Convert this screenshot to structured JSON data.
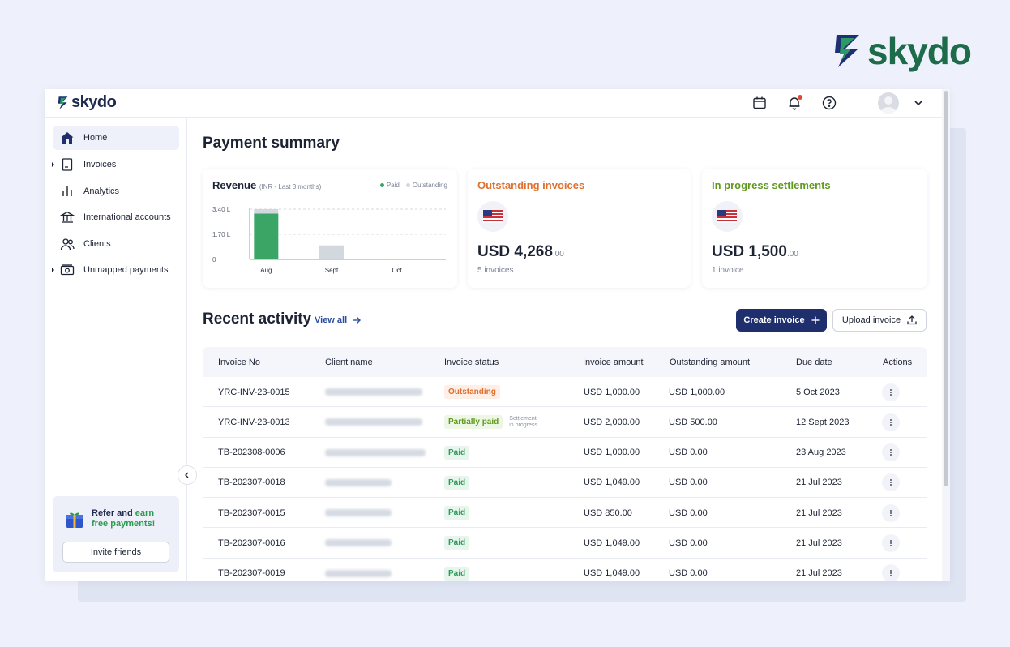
{
  "brand": {
    "name": "skydo",
    "colors": {
      "green": "#1d6b4a",
      "navy": "#1f2f6e"
    }
  },
  "topbar": {
    "logo": "skydo"
  },
  "sidebar": {
    "items": [
      {
        "label": "Home",
        "icon": "home-icon"
      },
      {
        "label": "Invoices",
        "icon": "invoice-icon"
      },
      {
        "label": "Analytics",
        "icon": "analytics-icon"
      },
      {
        "label": "International accounts",
        "icon": "bank-icon"
      },
      {
        "label": "Clients",
        "icon": "clients-icon"
      },
      {
        "label": "Unmapped payments",
        "icon": "payments-icon"
      }
    ],
    "refer": {
      "text_a": "Refer and ",
      "text_b": "earn free",
      "text_c": "payments!",
      "button": "Invite friends"
    }
  },
  "main": {
    "title": "Payment summary",
    "revenue": {
      "title": "Revenue",
      "subtitle": "(INR - Last 3 months)",
      "legend_paid": "Paid",
      "legend_outstanding": "Outstanding"
    },
    "outstanding": {
      "title": "Outstanding invoices",
      "amount": "USD 4,268",
      "cents": ".00",
      "sub": "5 invoices"
    },
    "settlements": {
      "title": "In progress settlements",
      "amount": "USD 1,500",
      "cents": ".00",
      "sub": "1 invoice"
    },
    "recent": {
      "title": "Recent activity",
      "view_all": "View all",
      "create_button": "Create invoice",
      "upload_button": "Upload invoice"
    },
    "table": {
      "headers": [
        "Invoice No",
        "Client name",
        "Invoice status",
        "Invoice amount",
        "Outstanding amount",
        "Due date",
        "Actions"
      ],
      "rows": [
        {
          "invoice": "YRC-INV-23-0015",
          "status": "Outstanding",
          "amount": "USD 1,000.00",
          "outstanding": "USD 1,000.00",
          "due": "5 Oct 2023"
        },
        {
          "invoice": "YRC-INV-23-0013",
          "status": "Partially paid",
          "note1": "Settlement",
          "note2": "in progress",
          "amount": "USD 2,000.00",
          "outstanding": "USD 500.00",
          "due": "12 Sept 2023"
        },
        {
          "invoice": "TB-202308-0006",
          "status": "Paid",
          "amount": "USD 1,000.00",
          "outstanding": "USD 0.00",
          "due": "23 Aug 2023"
        },
        {
          "invoice": "TB-202307-0018",
          "status": "Paid",
          "amount": "USD 1,049.00",
          "outstanding": "USD 0.00",
          "due": "21 Jul 2023"
        },
        {
          "invoice": "TB-202307-0015",
          "status": "Paid",
          "amount": "USD 850.00",
          "outstanding": "USD 0.00",
          "due": "21 Jul 2023"
        },
        {
          "invoice": "TB-202307-0016",
          "status": "Paid",
          "amount": "USD 1,049.00",
          "outstanding": "USD 0.00",
          "due": "21 Jul 2023"
        },
        {
          "invoice": "TB-202307-0019",
          "status": "Paid",
          "amount": "USD 1,049.00",
          "outstanding": "USD 0.00",
          "due": "21 Jul 2023"
        }
      ]
    }
  },
  "chart_data": {
    "type": "bar",
    "title": "Revenue",
    "subtitle": "(INR - Last 3 months)",
    "categories": [
      "Aug",
      "Sept",
      "Oct"
    ],
    "series": [
      {
        "name": "Paid",
        "values": [
          3.1,
          0,
          0
        ],
        "color": "#3aa564"
      },
      {
        "name": "Outstanding",
        "values": [
          0.3,
          0.95,
          0
        ],
        "color": "#d3d7de"
      }
    ],
    "yticks": [
      "3.40 L",
      "1.70 L",
      "0"
    ],
    "ytick_values": [
      3.4,
      1.7,
      0
    ],
    "ylim": [
      0,
      3.4
    ],
    "ylabel": "",
    "xlabel": ""
  }
}
